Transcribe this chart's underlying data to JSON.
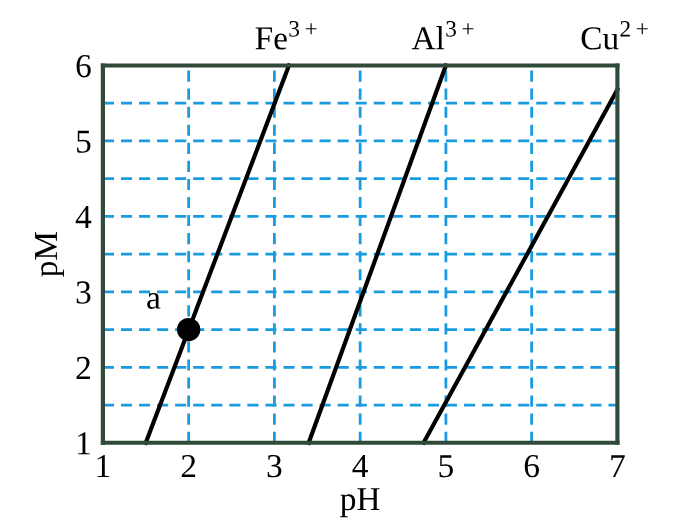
{
  "chart_data": {
    "type": "line",
    "xlabel": "pH",
    "ylabel": "pM",
    "xlim": [
      1,
      7
    ],
    "ylim": [
      1,
      6
    ],
    "xticks": [
      1,
      2,
      3,
      4,
      5,
      6,
      7
    ],
    "yticks": [
      1,
      {
        "value": 1.5,
        "label": null
      },
      2,
      {
        "value": 2.5,
        "label": null
      },
      3,
      {
        "value": 3.5,
        "label": null
      },
      4,
      {
        "value": 4.5,
        "label": null
      },
      5,
      {
        "value": 5.5,
        "label": null
      },
      6
    ],
    "grid": true,
    "line_style": "solid",
    "marker": "none",
    "legend": false,
    "series": [
      {
        "name": "Fe$^{3+}$",
        "color": "#000000",
        "x": [
          1.5,
          3.17
        ],
        "values": [
          1,
          6
        ]
      },
      {
        "name": "Al$^{3+}$",
        "color": "#000000",
        "x": [
          3.4,
          5.0
        ],
        "values": [
          1,
          6
        ]
      },
      {
        "name": "Cu$^{2+}$",
        "color": "#000000",
        "x": [
          4.74,
          7
        ],
        "values": [
          1,
          5.68
        ]
      },
      {
        "type": "scatter",
        "color": "#000000",
        "marker": "circle",
        "x": [
          2
        ],
        "values": [
          2.5
        ]
      }
    ],
    "annotations": [
      {
        "text": "a",
        "x": 2,
        "y": 2.5
      }
    ]
  }
}
